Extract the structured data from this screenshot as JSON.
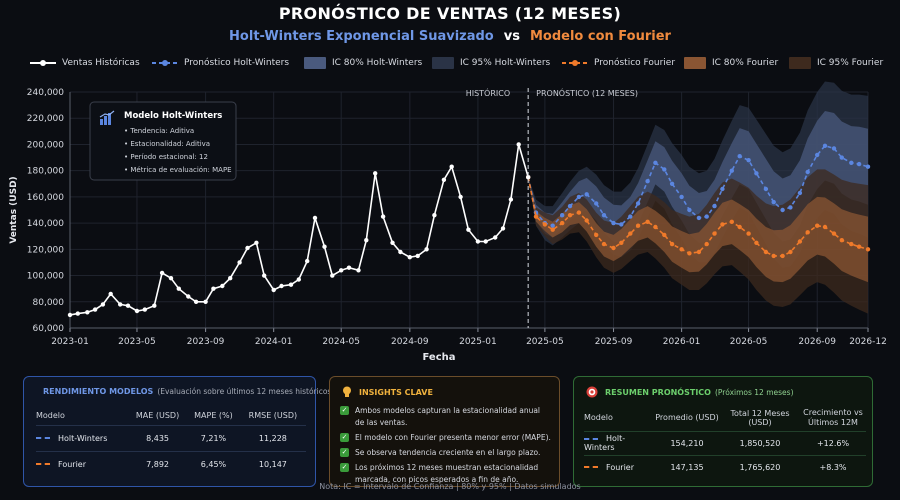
{
  "header": {
    "title": "PRONÓSTICO DE VENTAS (12 MESES)",
    "subtitle_hw": "Holt-Winters Exponencial Suavizado",
    "subtitle_vs": "vs",
    "subtitle_fourier": "Modelo con Fourier"
  },
  "legend": {
    "historical": "Ventas Históricas",
    "hw_forecast": "Pronóstico Holt-Winters",
    "hw_ci80": "IC 80% Holt-Winters",
    "hw_ci95": "IC 95% Holt-Winters",
    "fourier_forecast": "Pronóstico Fourier",
    "fourier_ci80": "IC 80% Fourier",
    "fourier_ci95": "IC 95% Fourier"
  },
  "colors": {
    "historical": "#ffffff",
    "hw": "#5b86e0",
    "fourier": "#f07a2a",
    "hw_band_80": "#4a5a7e",
    "hw_band_95": "#2a3346",
    "fourier_band_80": "#8a5533",
    "fourier_band_95": "#3e2a1e"
  },
  "chart_data": {
    "type": "line",
    "xlabel": "Fecha",
    "ylabel": "Ventas (USD)",
    "ylim": [
      60000,
      240000
    ],
    "yticks": [
      60000,
      80000,
      100000,
      120000,
      140000,
      160000,
      180000,
      200000,
      220000,
      240000
    ],
    "ytick_labels": [
      "60,000",
      "80,000",
      "100,000",
      "120,000",
      "140,000",
      "160,000",
      "180,000",
      "200,000",
      "220,000",
      "240,000"
    ],
    "xlim": [
      "2023-01",
      "2026-12"
    ],
    "xtick_labels": [
      "2023-01",
      "2023-05",
      "2023-09",
      "2024-01",
      "2024-05",
      "2024-09",
      "2025-01",
      "2025-05",
      "2025-09",
      "2026-01",
      "2026-05",
      "2026-09",
      "2026-12"
    ],
    "grid": true,
    "region_labels": {
      "history": "HISTÓRICO",
      "forecast": "PRONÓSTICO (12 MESES)"
    },
    "forecast_start": "2025-04",
    "model_box": {
      "title": "Modelo Holt-Winters",
      "items": [
        "Tendencia: Aditiva",
        "Estacionalidad: Aditiva",
        "Período estacional: 12",
        "Métrica de evaluación: MAPE"
      ]
    },
    "historical": {
      "name": "Ventas Históricas",
      "points": [
        [
          "2023-01-01",
          70000
        ],
        [
          "2023-01-15",
          71000
        ],
        [
          "2023-02-01",
          72000
        ],
        [
          "2023-02-15",
          74000
        ],
        [
          "2023-03-01",
          78000
        ],
        [
          "2023-03-15",
          86000
        ],
        [
          "2023-04-01",
          78000
        ],
        [
          "2023-04-15",
          77000
        ],
        [
          "2023-05-01",
          73000
        ],
        [
          "2023-05-15",
          74000
        ],
        [
          "2023-06-01",
          77000
        ],
        [
          "2023-06-15",
          102000
        ],
        [
          "2023-07-01",
          98000
        ],
        [
          "2023-07-15",
          90000
        ],
        [
          "2023-08-01",
          84000
        ],
        [
          "2023-08-15",
          80000
        ],
        [
          "2023-09-01",
          80000
        ],
        [
          "2023-09-15",
          90000
        ],
        [
          "2023-10-01",
          92000
        ],
        [
          "2023-10-15",
          98000
        ],
        [
          "2023-11-01",
          110000
        ],
        [
          "2023-11-15",
          121000
        ],
        [
          "2023-12-01",
          125000
        ],
        [
          "2023-12-15",
          100000
        ],
        [
          "2024-01-01",
          89000
        ],
        [
          "2024-01-15",
          92000
        ],
        [
          "2024-02-01",
          93000
        ],
        [
          "2024-02-15",
          97000
        ],
        [
          "2024-03-01",
          111000
        ],
        [
          "2024-03-15",
          144000
        ],
        [
          "2024-04-01",
          122000
        ],
        [
          "2024-04-15",
          100000
        ],
        [
          "2024-05-01",
          104000
        ],
        [
          "2024-05-15",
          106000
        ],
        [
          "2024-06-01",
          104000
        ],
        [
          "2024-06-15",
          127000
        ],
        [
          "2024-07-01",
          178000
        ],
        [
          "2024-07-15",
          145000
        ],
        [
          "2024-08-01",
          125000
        ],
        [
          "2024-08-15",
          118000
        ],
        [
          "2024-09-01",
          114000
        ],
        [
          "2024-09-15",
          115000
        ],
        [
          "2024-10-01",
          120000
        ],
        [
          "2024-10-15",
          146000
        ],
        [
          "2024-11-01",
          173000
        ],
        [
          "2024-11-15",
          183000
        ],
        [
          "2024-12-01",
          160000
        ],
        [
          "2024-12-15",
          135000
        ],
        [
          "2025-01-01",
          126000
        ],
        [
          "2025-01-15",
          126000
        ],
        [
          "2025-02-01",
          129000
        ],
        [
          "2025-02-15",
          136000
        ],
        [
          "2025-03-01",
          158000
        ],
        [
          "2025-03-15",
          200000
        ],
        [
          "2025-04-01",
          175000
        ]
      ]
    },
    "hw_forecast": {
      "name": "Pronóstico Holt-Winters",
      "points": [
        [
          "2025-04-01",
          175000
        ],
        [
          "2025-04-15",
          148000
        ],
        [
          "2025-05-01",
          140000
        ],
        [
          "2025-05-15",
          138000
        ],
        [
          "2025-06-01",
          146000
        ],
        [
          "2025-06-15",
          153000
        ],
        [
          "2025-07-01",
          160000
        ],
        [
          "2025-07-15",
          162000
        ],
        [
          "2025-08-01",
          155000
        ],
        [
          "2025-08-15",
          146000
        ],
        [
          "2025-09-01",
          140000
        ],
        [
          "2025-09-15",
          139000
        ],
        [
          "2025-10-01",
          145000
        ],
        [
          "2025-10-15",
          155000
        ],
        [
          "2025-11-01",
          172000
        ],
        [
          "2025-11-15",
          186000
        ],
        [
          "2025-12-01",
          181000
        ],
        [
          "2025-12-15",
          170000
        ],
        [
          "2026-01-01",
          160000
        ],
        [
          "2026-01-15",
          150000
        ],
        [
          "2026-02-01",
          144000
        ],
        [
          "2026-02-15",
          145000
        ],
        [
          "2026-03-01",
          153000
        ],
        [
          "2026-03-15",
          166000
        ],
        [
          "2026-04-01",
          180000
        ],
        [
          "2026-04-15",
          191000
        ],
        [
          "2026-05-01",
          188000
        ],
        [
          "2026-05-15",
          178000
        ],
        [
          "2026-06-01",
          166000
        ],
        [
          "2026-06-15",
          156000
        ],
        [
          "2026-07-01",
          150000
        ],
        [
          "2026-07-15",
          152000
        ],
        [
          "2026-08-01",
          163000
        ],
        [
          "2026-08-15",
          179000
        ],
        [
          "2026-09-01",
          192000
        ],
        [
          "2026-09-15",
          199000
        ],
        [
          "2026-10-01",
          197000
        ],
        [
          "2026-10-15",
          190000
        ],
        [
          "2026-11-01",
          186000
        ],
        [
          "2026-11-15",
          185000
        ],
        [
          "2026-12-01",
          183000
        ]
      ],
      "ci80_halfwidth": [
        0,
        6000,
        8000,
        9000,
        10000,
        11000,
        12000,
        12500,
        13000,
        13500,
        14000,
        14500,
        15000,
        15500,
        16000,
        16500,
        17000,
        17500,
        18000,
        18500,
        19000,
        19500,
        20000,
        20500,
        21000,
        21500,
        22000,
        22500,
        23000,
        23500,
        24000,
        24500,
        25000,
        25500,
        26000,
        26500,
        27000,
        27500,
        28000,
        28500,
        29000
      ],
      "ci95_halfwidth": [
        0,
        10000,
        13000,
        15000,
        17000,
        18500,
        20000,
        21000,
        22000,
        23000,
        24000,
        25000,
        26000,
        27000,
        28000,
        29000,
        30000,
        31000,
        32000,
        33000,
        34000,
        35000,
        36000,
        37000,
        38000,
        39000,
        40000,
        41000,
        42000,
        43000,
        44000,
        45000,
        46000,
        47000,
        48000,
        49000,
        50000,
        51000,
        52000,
        53000,
        54000
      ]
    },
    "fourier_forecast": {
      "name": "Pronóstico Fourier",
      "points": [
        [
          "2025-04-01",
          175000
        ],
        [
          "2025-04-15",
          145000
        ],
        [
          "2025-05-01",
          139000
        ],
        [
          "2025-05-15",
          135000
        ],
        [
          "2025-06-01",
          140000
        ],
        [
          "2025-06-15",
          146000
        ],
        [
          "2025-07-01",
          148000
        ],
        [
          "2025-07-15",
          142000
        ],
        [
          "2025-08-01",
          131000
        ],
        [
          "2025-08-15",
          124000
        ],
        [
          "2025-09-01",
          121000
        ],
        [
          "2025-09-15",
          125000
        ],
        [
          "2025-10-01",
          132000
        ],
        [
          "2025-10-15",
          138000
        ],
        [
          "2025-11-01",
          141000
        ],
        [
          "2025-11-15",
          137000
        ],
        [
          "2025-12-01",
          131000
        ],
        [
          "2025-12-15",
          124000
        ],
        [
          "2026-01-01",
          120000
        ],
        [
          "2026-01-15",
          117000
        ],
        [
          "2026-02-01",
          118000
        ],
        [
          "2026-02-15",
          124000
        ],
        [
          "2026-03-01",
          132000
        ],
        [
          "2026-03-15",
          139000
        ],
        [
          "2026-04-01",
          141000
        ],
        [
          "2026-04-15",
          137000
        ],
        [
          "2026-05-01",
          132000
        ],
        [
          "2026-05-15",
          125000
        ],
        [
          "2026-06-01",
          118000
        ],
        [
          "2026-06-15",
          115000
        ],
        [
          "2026-07-01",
          115000
        ],
        [
          "2026-07-15",
          118000
        ],
        [
          "2026-08-01",
          126000
        ],
        [
          "2026-08-15",
          133000
        ],
        [
          "2026-09-01",
          138000
        ],
        [
          "2026-09-15",
          137000
        ],
        [
          "2026-10-01",
          132000
        ],
        [
          "2026-10-15",
          127000
        ],
        [
          "2026-11-01",
          124000
        ],
        [
          "2026-11-15",
          122000
        ],
        [
          "2026-12-01",
          120000
        ]
      ],
      "ci80_halfwidth": [
        0,
        4000,
        5000,
        6000,
        7000,
        7500,
        8000,
        8500,
        9000,
        9500,
        10000,
        10500,
        11000,
        11500,
        12000,
        12500,
        13000,
        13500,
        14000,
        14500,
        15000,
        15500,
        16000,
        16500,
        17000,
        17500,
        18000,
        18500,
        19000,
        19500,
        20000,
        20500,
        21000,
        21500,
        22000,
        22500,
        23000,
        23500,
        24000,
        24500,
        25000
      ],
      "ci95_halfwidth": [
        0,
        7000,
        9000,
        11000,
        12500,
        14000,
        15000,
        16000,
        17000,
        18000,
        19000,
        20000,
        21000,
        22000,
        23000,
        24000,
        25000,
        26000,
        27000,
        28000,
        29000,
        30000,
        31000,
        32000,
        33000,
        34000,
        35000,
        36000,
        37000,
        38000,
        39000,
        40000,
        41000,
        42000,
        43000,
        44000,
        45000,
        46000,
        47000,
        48000,
        49000
      ]
    }
  },
  "panels": {
    "performance": {
      "title": "RENDIMIENTO MODELOS",
      "subtitle": "(Evaluación sobre últimos 12 meses históricos)",
      "headers": [
        "Modelo",
        "MAE (USD)",
        "MAPE (%)",
        "RMSE (USD)"
      ],
      "rows": [
        [
          "Holt-Winters",
          "8,435",
          "7,21%",
          "11,228"
        ],
        [
          "Fourier",
          "7,892",
          "6,45%",
          "10,147"
        ]
      ]
    },
    "insights": {
      "title": "INSIGHTS CLAVE",
      "items": [
        "Ambos modelos capturan la estacionalidad anual de las ventas.",
        "El modelo con Fourier presenta menor error (MAPE).",
        "Se observa tendencia creciente en el largo plazo.",
        "Los próximos 12 meses muestran estacionalidad marcada, con picos esperados a fin de año."
      ]
    },
    "summary": {
      "title": "RESUMEN PRONÓSTICO",
      "subtitle": "(Próximos 12 meses)",
      "headers": [
        "Modelo",
        "Promedio (USD)",
        "Total 12 Meses (USD)",
        "Crecimiento vs Últimos 12M"
      ],
      "rows": [
        [
          "Holt-Winters",
          "154,210",
          "1,850,520",
          "+12.6%"
        ],
        [
          "Fourier",
          "147,135",
          "1,765,620",
          "+8.3%"
        ]
      ]
    }
  },
  "footer": {
    "note": "Nota: IC = Intervalo de Confianza | 80% y 95% | Datos simulados"
  }
}
